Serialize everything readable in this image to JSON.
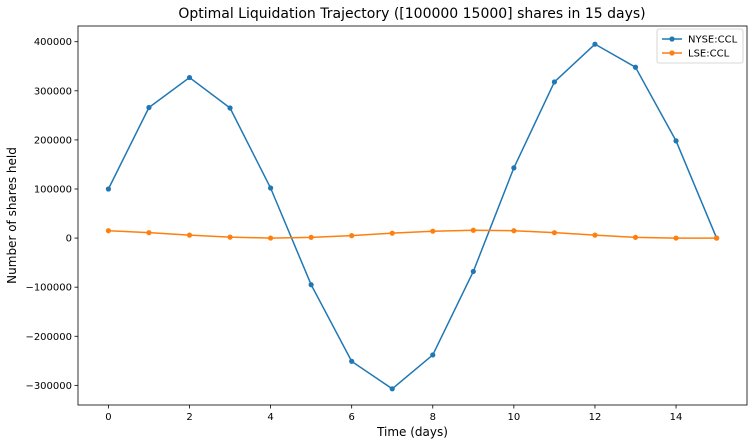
{
  "chart_data": {
    "type": "line",
    "title": "Optimal Liquidation Trajectory ([100000  15000] shares in 15 days)",
    "xlabel": "Time (days)",
    "ylabel": "Number of shares held",
    "xlim": [
      -0.75,
      15.75
    ],
    "ylim": [
      -340000,
      432000
    ],
    "x": [
      0,
      1,
      2,
      3,
      4,
      5,
      6,
      7,
      8,
      9,
      10,
      11,
      12,
      13,
      14,
      15
    ],
    "x_ticks": [
      0,
      2,
      4,
      6,
      8,
      10,
      12,
      14
    ],
    "x_tick_labels": [
      "0",
      "2",
      "4",
      "6",
      "8",
      "10",
      "12",
      "14"
    ],
    "y_ticks": [
      -300000,
      -200000,
      -100000,
      0,
      100000,
      200000,
      300000,
      400000
    ],
    "y_tick_labels": [
      "−300000",
      "−200000",
      "−100000",
      "0",
      "100000",
      "200000",
      "300000",
      "400000"
    ],
    "legend_position": "top-right",
    "series": [
      {
        "name": "NYSE:CCL",
        "color": "#1f77b4",
        "marker": "circle",
        "values": [
          100000,
          266000,
          327000,
          265000,
          102000,
          -95000,
          -251000,
          -307000,
          -238000,
          -68000,
          143000,
          318000,
          395000,
          348000,
          198000,
          0
        ]
      },
      {
        "name": "LSE:CCL",
        "color": "#ff7f0e",
        "marker": "circle",
        "values": [
          15000,
          11000,
          6000,
          2000,
          0,
          1500,
          5000,
          10000,
          14000,
          16000,
          15000,
          11000,
          6000,
          1500,
          0,
          0
        ]
      }
    ]
  }
}
